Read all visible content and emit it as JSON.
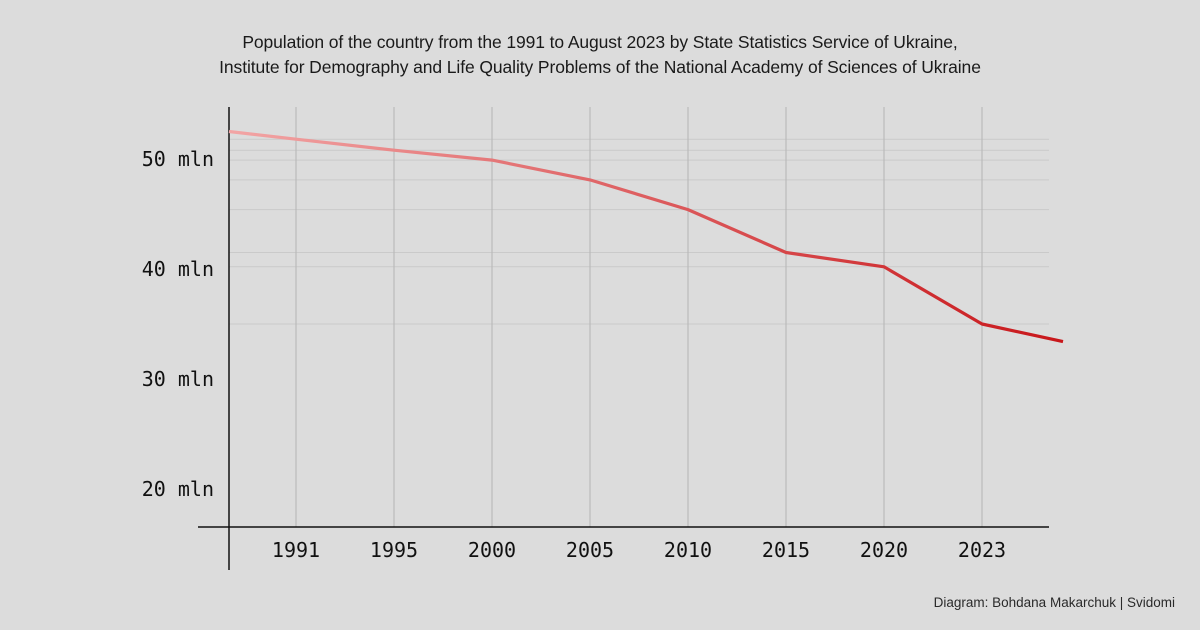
{
  "title_lines": [
    "Population of the country from the 1991 to August 2023 by State Statistics Service of Ukraine,",
    "Institute for Demography and Life Quality Problems of the National Academy of Sciences of Ukraine"
  ],
  "credit": "Diagram: Bohdana Makarchuk | Svidomi",
  "colors": {
    "background": "#dcdcdc",
    "line_start": "#f2a5a5",
    "line_end": "#c8161a",
    "grid": "#bdbdbd",
    "axis": "#111111"
  },
  "chart_data": {
    "type": "line",
    "title": "Population of the country from the 1991 to August 2023 by State Statistics Service of Ukraine, Institute for Demography and Life Quality Problems of the National Academy of Sciences of Ukraine",
    "xlabel": "",
    "ylabel": "",
    "x_tick_labels": [
      "1991",
      "1995",
      "2000",
      "2005",
      "2010",
      "2015",
      "2020",
      "2023"
    ],
    "y_ticks": [
      {
        "value": 50,
        "label": "50 mln"
      },
      {
        "value": 40,
        "label": "40 mln"
      },
      {
        "value": 30,
        "label": "30 mln"
      },
      {
        "value": 20,
        "label": "20 mln"
      }
    ],
    "ylim": [
      16.5,
      54.5
    ],
    "units": "million people",
    "grid": {
      "vertical": true,
      "horizontal_at_data_points": true
    },
    "legend": "none",
    "series": [
      {
        "name": "Population",
        "categories": [
          "start",
          "1991",
          "1995",
          "2000",
          "2005",
          "2010",
          "2015",
          "2020",
          "2023",
          "end"
        ],
        "values": [
          52.5,
          51.8,
          50.8,
          49.9,
          48.1,
          45.4,
          41.5,
          40.2,
          35.0,
          33.4
        ]
      }
    ]
  }
}
